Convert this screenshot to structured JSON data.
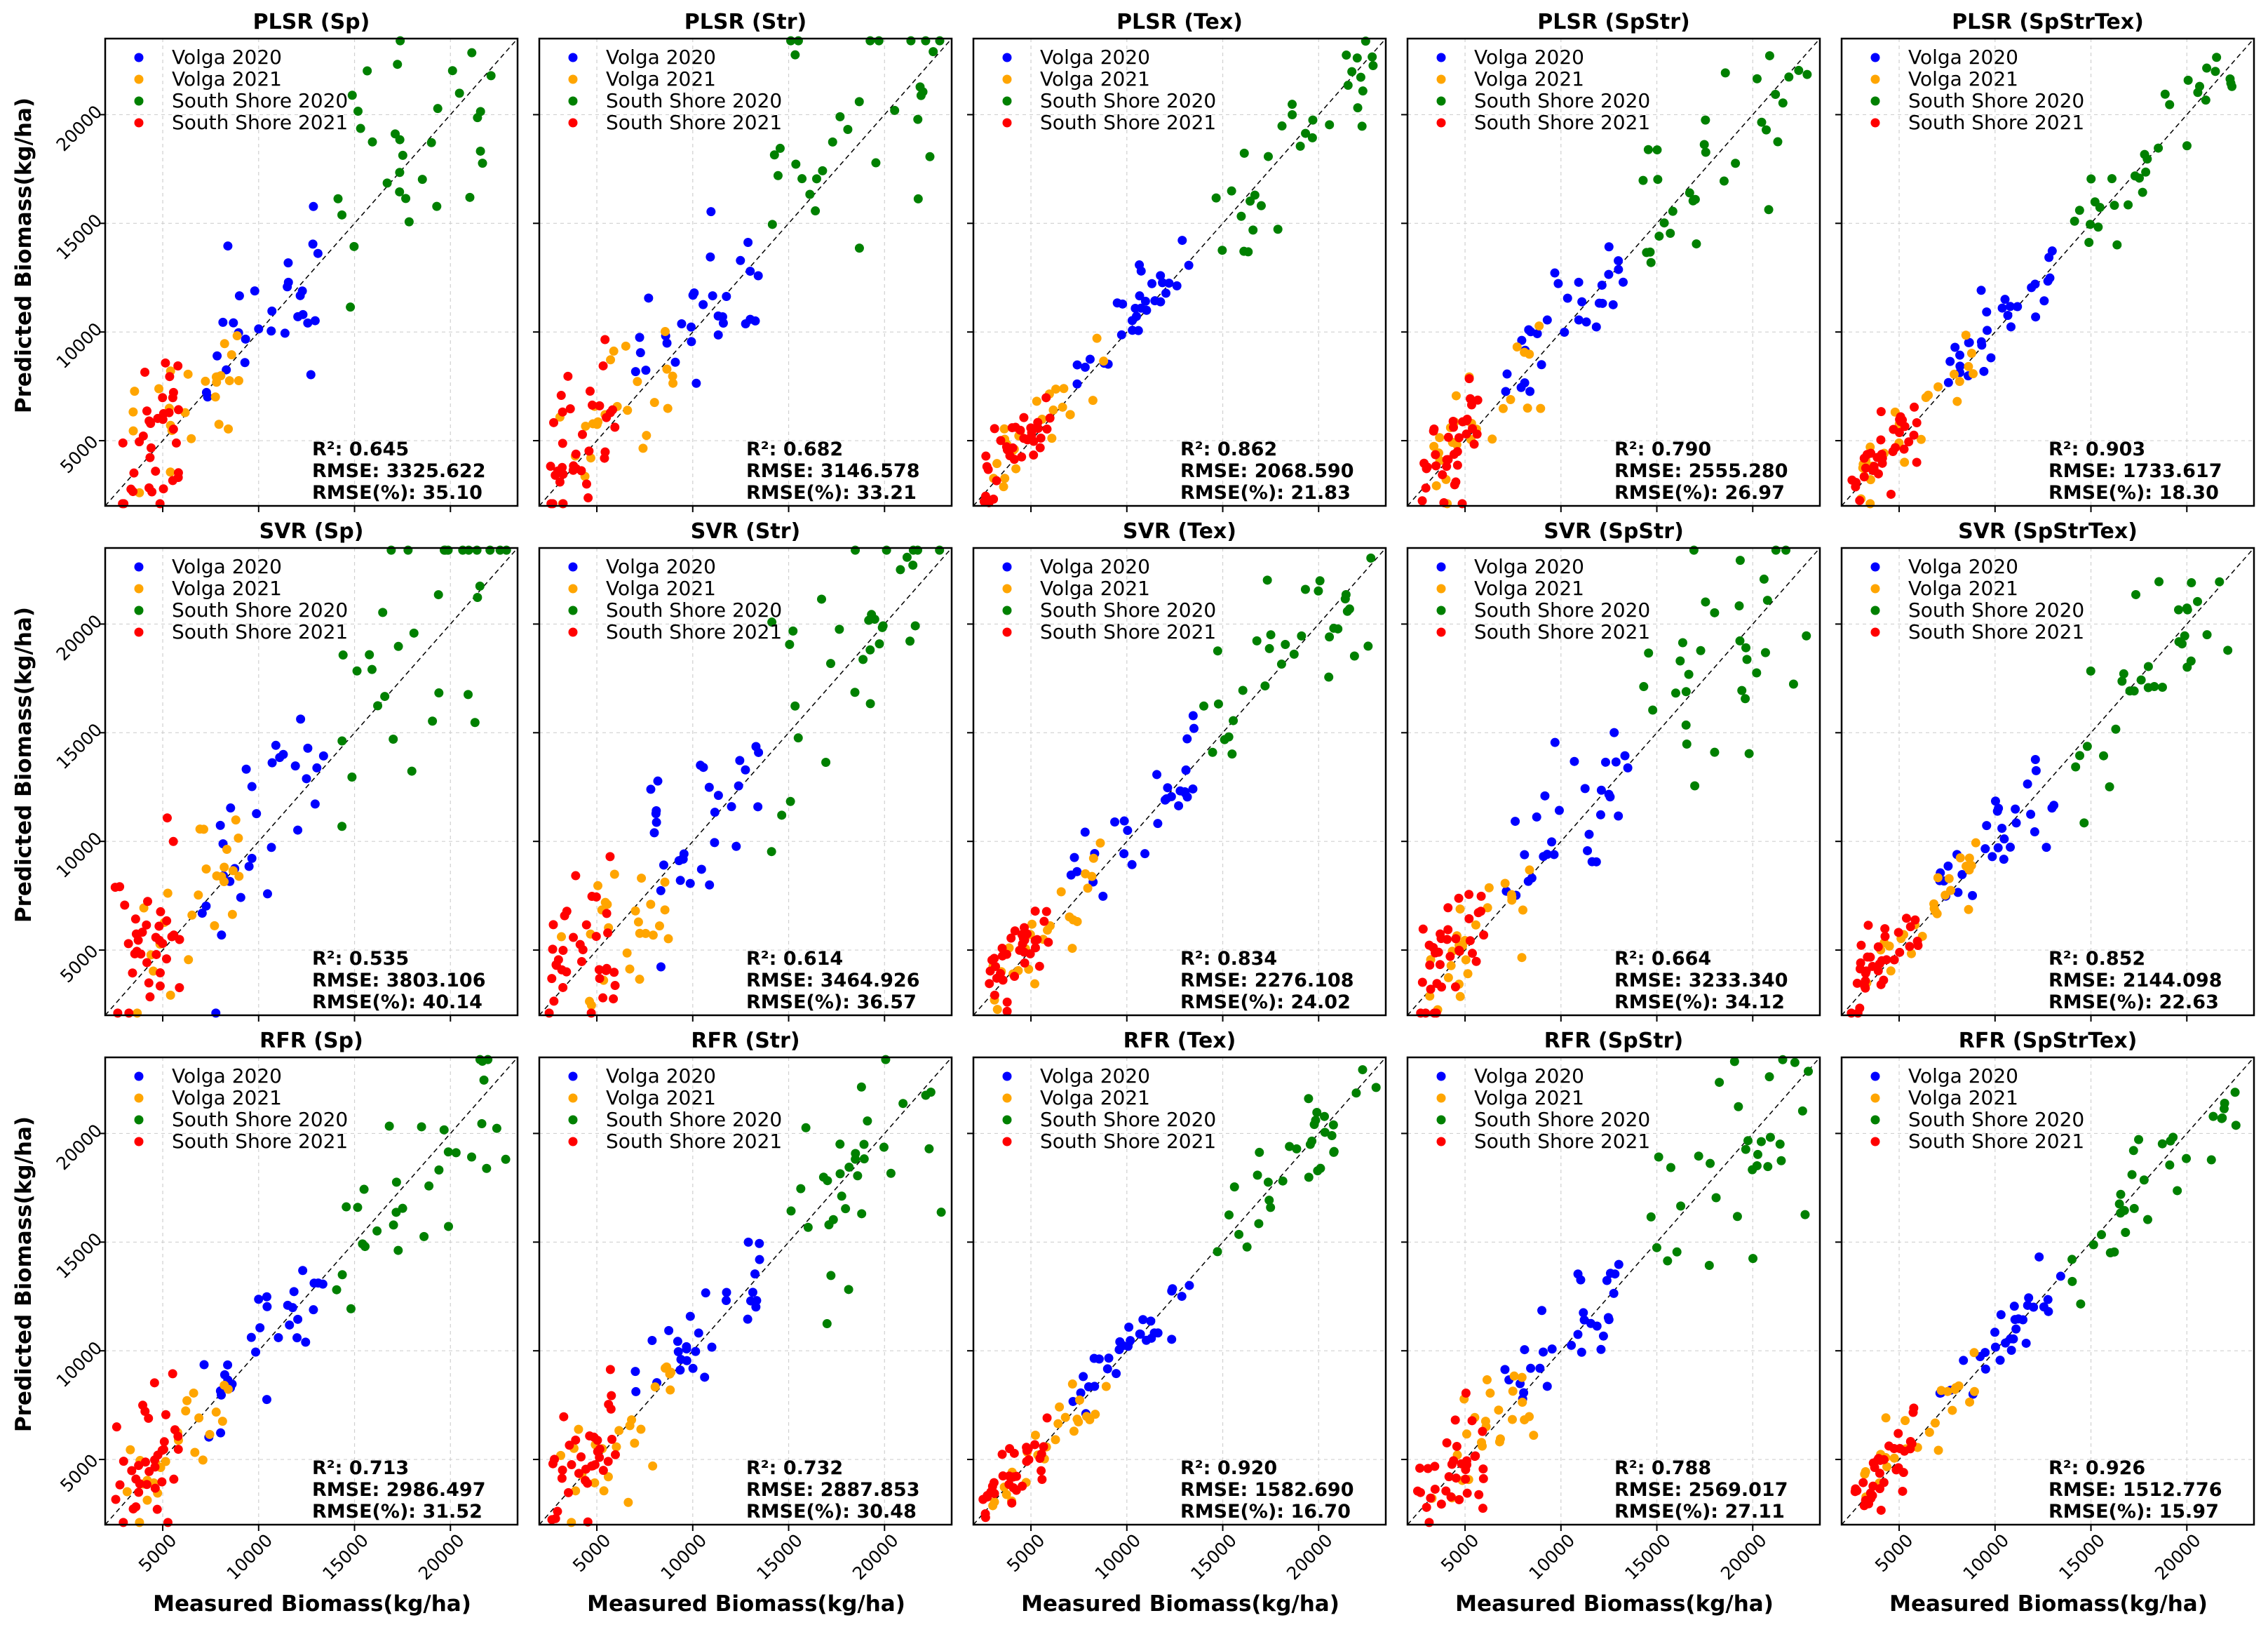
{
  "figure": {
    "xlabel": "Measured Biomass(kg/ha)",
    "ylabel": "Predicted Biomass(kg/ha)",
    "x_ticks": [
      "5000",
      "10000",
      "15000",
      "20000"
    ],
    "y_ticks": [
      "5000",
      "10000",
      "15000",
      "20000"
    ],
    "legend": [
      {
        "name": "Volga 2020",
        "color": "#0000ff"
      },
      {
        "name": "Volga 2021",
        "color": "#ffa500"
      },
      {
        "name": "South Shore 2020",
        "color": "#008000"
      },
      {
        "name": "South Shore 2021",
        "color": "#ff0000"
      }
    ],
    "r2_prefix": "R²: ",
    "rmse_prefix": "RMSE: ",
    "rmsep_prefix": "RMSE(%): "
  },
  "chart_data": [
    {
      "type": "scatter",
      "title": "PLSR (Sp)",
      "model": "PLSR",
      "features": "Sp",
      "r2": "0.645",
      "rmse": "3325.622",
      "rmse_pct": "35.10",
      "xlim": [
        2000,
        23500
      ],
      "ylim": [
        2000,
        23500
      ],
      "reference_line": "1:1"
    },
    {
      "type": "scatter",
      "title": "PLSR (Str)",
      "model": "PLSR",
      "features": "Str",
      "r2": "0.682",
      "rmse": "3146.578",
      "rmse_pct": "33.21",
      "xlim": [
        2000,
        23500
      ],
      "ylim": [
        2000,
        23500
      ],
      "reference_line": "1:1"
    },
    {
      "type": "scatter",
      "title": "PLSR (Tex)",
      "model": "PLSR",
      "features": "Tex",
      "r2": "0.862",
      "rmse": "2068.590",
      "rmse_pct": "21.83",
      "xlim": [
        2000,
        23500
      ],
      "ylim": [
        2000,
        23500
      ],
      "reference_line": "1:1"
    },
    {
      "type": "scatter",
      "title": "PLSR (SpStr)",
      "model": "PLSR",
      "features": "SpStr",
      "r2": "0.790",
      "rmse": "2555.280",
      "rmse_pct": "26.97",
      "xlim": [
        2000,
        23500
      ],
      "ylim": [
        2000,
        23500
      ],
      "reference_line": "1:1"
    },
    {
      "type": "scatter",
      "title": "PLSR (SpStrTex)",
      "model": "PLSR",
      "features": "SpStrTex",
      "r2": "0.903",
      "rmse": "1733.617",
      "rmse_pct": "18.30",
      "xlim": [
        2000,
        23500
      ],
      "ylim": [
        2000,
        23500
      ],
      "reference_line": "1:1"
    },
    {
      "type": "scatter",
      "title": "SVR (Sp)",
      "model": "SVR",
      "features": "Sp",
      "r2": "0.535",
      "rmse": "3803.106",
      "rmse_pct": "40.14",
      "xlim": [
        2000,
        23500
      ],
      "ylim": [
        2000,
        23500
      ],
      "reference_line": "1:1"
    },
    {
      "type": "scatter",
      "title": "SVR (Str)",
      "model": "SVR",
      "features": "Str",
      "r2": "0.614",
      "rmse": "3464.926",
      "rmse_pct": "36.57",
      "xlim": [
        2000,
        23500
      ],
      "ylim": [
        2000,
        23500
      ],
      "reference_line": "1:1"
    },
    {
      "type": "scatter",
      "title": "SVR (Tex)",
      "model": "SVR",
      "features": "Tex",
      "r2": "0.834",
      "rmse": "2276.108",
      "rmse_pct": "24.02",
      "xlim": [
        2000,
        23500
      ],
      "ylim": [
        2000,
        23500
      ],
      "reference_line": "1:1"
    },
    {
      "type": "scatter",
      "title": "SVR (SpStr)",
      "model": "SVR",
      "features": "SpStr",
      "r2": "0.664",
      "rmse": "3233.340",
      "rmse_pct": "34.12",
      "xlim": [
        2000,
        23500
      ],
      "ylim": [
        2000,
        23500
      ],
      "reference_line": "1:1"
    },
    {
      "type": "scatter",
      "title": "SVR (SpStrTex)",
      "model": "SVR",
      "features": "SpStrTex",
      "r2": "0.852",
      "rmse": "2144.098",
      "rmse_pct": "22.63",
      "xlim": [
        2000,
        23500
      ],
      "ylim": [
        2000,
        23500
      ],
      "reference_line": "1:1"
    },
    {
      "type": "scatter",
      "title": "RFR (Sp)",
      "model": "RFR",
      "features": "Sp",
      "r2": "0.713",
      "rmse": "2986.497",
      "rmse_pct": "31.52",
      "xlim": [
        2000,
        23500
      ],
      "ylim": [
        2000,
        23500
      ],
      "reference_line": "1:1"
    },
    {
      "type": "scatter",
      "title": "RFR (Str)",
      "model": "RFR",
      "features": "Str",
      "r2": "0.732",
      "rmse": "2887.853",
      "rmse_pct": "30.48",
      "xlim": [
        2000,
        23500
      ],
      "ylim": [
        2000,
        23500
      ],
      "reference_line": "1:1"
    },
    {
      "type": "scatter",
      "title": "RFR (Tex)",
      "model": "RFR",
      "features": "Tex",
      "r2": "0.920",
      "rmse": "1582.690",
      "rmse_pct": "16.70",
      "xlim": [
        2000,
        23500
      ],
      "ylim": [
        2000,
        23500
      ],
      "reference_line": "1:1"
    },
    {
      "type": "scatter",
      "title": "RFR (SpStr)",
      "model": "RFR",
      "features": "SpStr",
      "r2": "0.788",
      "rmse": "2569.017",
      "rmse_pct": "27.11",
      "xlim": [
        2000,
        23500
      ],
      "ylim": [
        2000,
        23500
      ],
      "reference_line": "1:1"
    },
    {
      "type": "scatter",
      "title": "RFR (SpStrTex)",
      "model": "RFR",
      "features": "SpStrTex",
      "r2": "0.926",
      "rmse": "1512.776",
      "rmse_pct": "15.97",
      "xlim": [
        2000,
        23500
      ],
      "ylim": [
        2000,
        23500
      ],
      "reference_line": "1:1"
    }
  ]
}
